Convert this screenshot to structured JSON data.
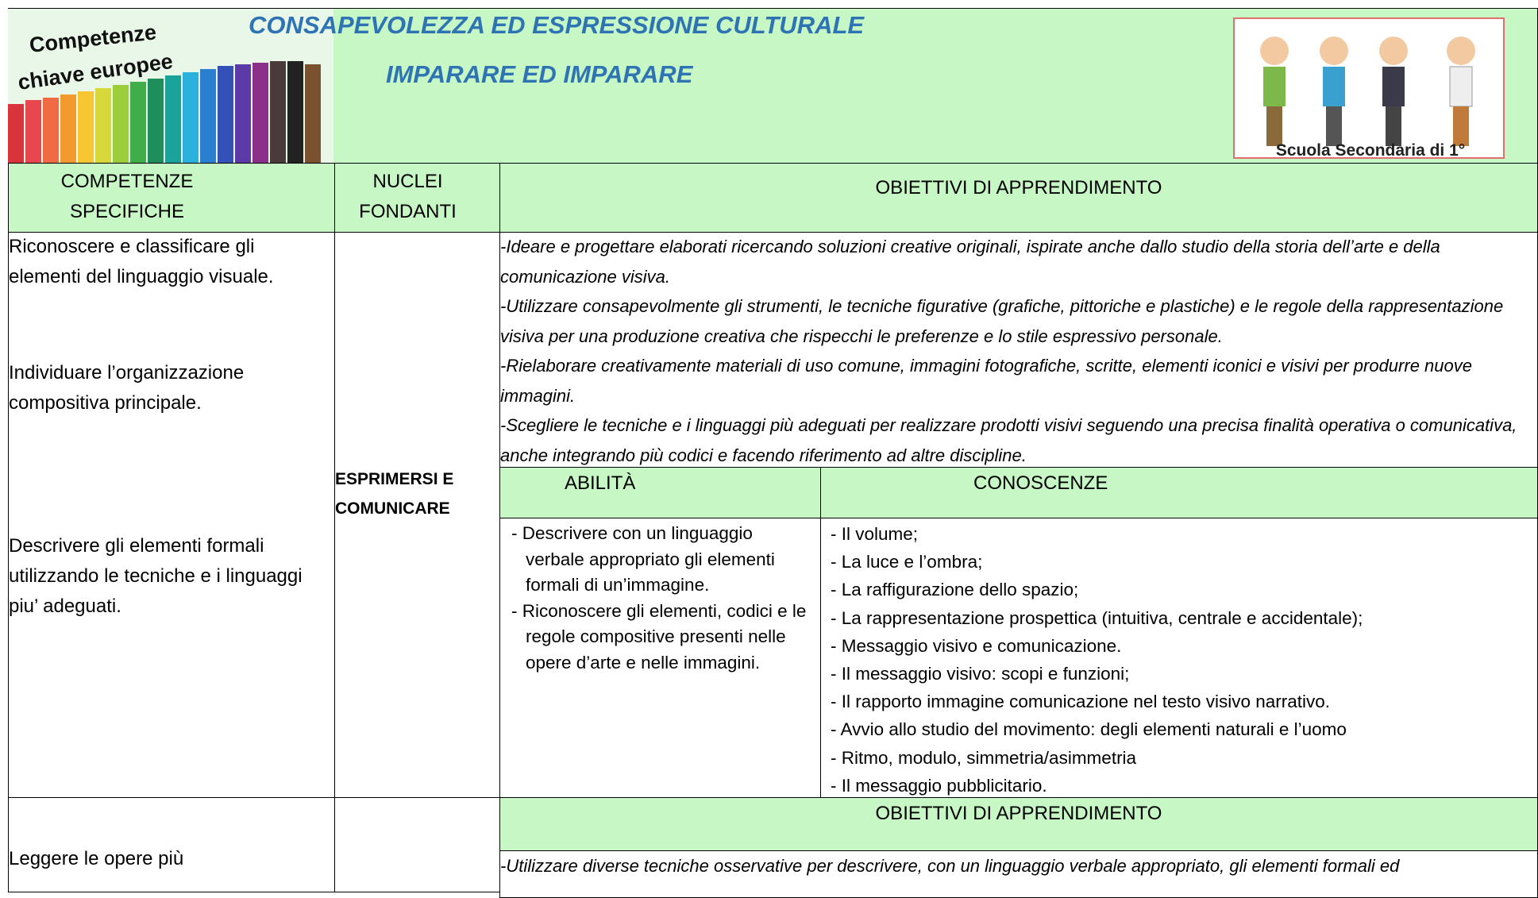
{
  "header": {
    "logo_text": [
      "Competenze",
      "chiave europee"
    ],
    "title": "CONSAPEVOLEZZA ED ESPRESSIONE CULTURALE",
    "subtitle": "IMPARARE ED IMPARARE",
    "badge": "Scuola Secondaria di 1°"
  },
  "table": {
    "headers": [
      "COMPETENZE SPECIFICHE",
      "NUCLEI FONDANTI",
      "OBIETTIVI DI APPRENDIMENTO"
    ],
    "rows": [
      {
        "competenze": [
          "Riconoscere e classificare gli elementi del linguaggio visuale.",
          "Individuare l’organizzazione compositiva principale.",
          "Descrivere gli elementi formali utilizzando le tecniche e i linguaggi piu’ adeguati."
        ],
        "nucleo": "ESPRIMERSI E COMUNICARE",
        "obiettivi": [
          "-Ideare e progettare elaborati ricercando soluzioni creative originali, ispirate anche dallo studio della storia dell’arte e della comunicazione visiva.",
          "-Utilizzare consapevolmente gli strumenti, le tecniche figurative (grafiche, pittoriche e plastiche) e le regole della rappresentazione visiva per una produzione creativa che rispecchi le preferenze e lo stile espressivo personale.",
          "-Rielaborare creativamente materiali di uso comune, immagini fotografiche, scritte, elementi iconici e visivi per produrre nuove immagini.",
          "-Scegliere le tecniche e i linguaggi più adeguati per realizzare prodotti visivi seguendo una precisa finalità operativa o comunicativa, anche integrando più codici e facendo riferimento ad altre discipline."
        ],
        "sub_headers": [
          "ABILITÀ",
          "CONOSCENZE"
        ],
        "abilita": [
          "- Descrivere con un linguaggio verbale appropriato gli elementi formali di un’immagine.",
          "- Riconoscere gli elementi, codici e le regole compositive presenti nelle opere d’arte e nelle immagini."
        ],
        "conoscenze": [
          "- Il volume;",
          "- La luce e l’ombra;",
          "- La raffigurazione dello spazio;",
          "- La rappresentazione prospettica (intuitiva, centrale e accidentale);",
          "- Messaggio visivo e comunicazione.",
          "- Il messaggio visivo: scopi e funzioni;",
          "- Il rapporto immagine comunicazione nel testo visivo narrativo.",
          "- Avvio allo studio del movimento: degli elementi naturali e l’uomo",
          "- Ritmo, modulo, simmetria/asimmetria",
          "- Il messaggio pubblicitario."
        ]
      },
      {
        "competenze": [
          "Leggere le opere più"
        ],
        "obiettivi_header": "OBIETTIVI DI APPRENDIMENTO",
        "obiettivi": [
          "-Utilizzare diverse tecniche osservative per descrivere, con un linguaggio verbale appropriato, gli elementi formali ed"
        ]
      }
    ]
  }
}
